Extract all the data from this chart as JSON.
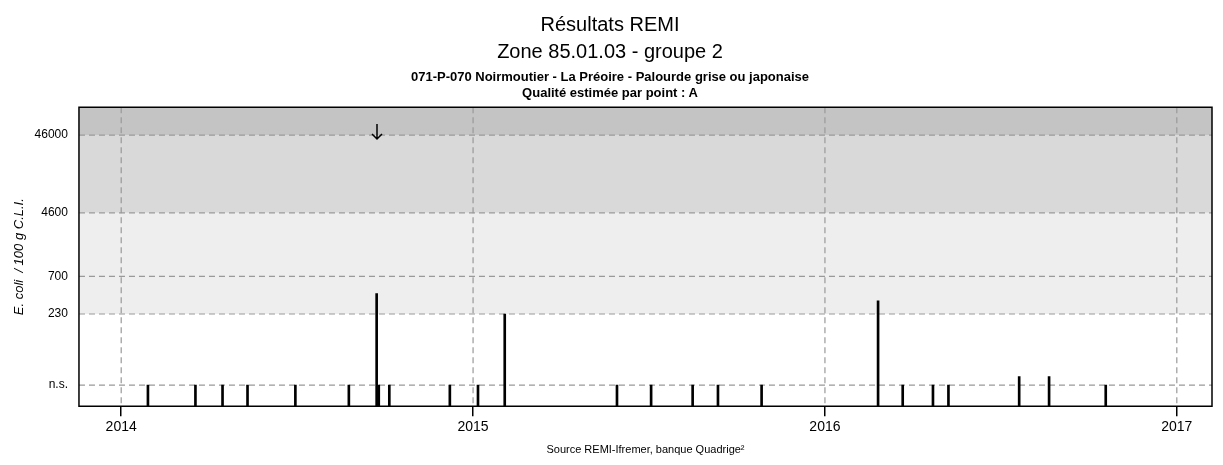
{
  "chart_data": {
    "type": "bar",
    "title": "Résultats REMI\nZone 85.01.03 - groupe 2",
    "subtitle": "071-P-070 Noirmoutier - La Préoire - Palourde grise ou japonaise\nQualité estimée par point : A",
    "ylabel": "E. coli  / 100 g C.L.I.",
    "annotations": [
      "Source REMI-Ifremer, banque Quadrige²"
    ],
    "x": [
      2014.076,
      2014.211,
      2014.288,
      2014.359,
      2014.495,
      2014.647,
      2014.726,
      2014.732,
      2014.762,
      2014.934,
      2015.014,
      2015.09,
      2015.409,
      2015.506,
      2015.624,
      2015.696,
      2015.82,
      2016.151,
      2016.221,
      2016.307,
      2016.351,
      2016.552,
      2016.637,
      2016.798
    ],
    "values": [
      28,
      28,
      28,
      28,
      28,
      28,
      420,
      28,
      28,
      28,
      28,
      230,
      28,
      28,
      28,
      28,
      28,
      340,
      28,
      28,
      28,
      36,
      36,
      28
    ],
    "color": "#000000",
    "log": true,
    "grid": true,
    "legend": false,
    "xlim": [
      2013.88,
      2017.1
    ],
    "xticks": [
      2014,
      2015,
      2016,
      2017
    ],
    "ylim": [
      15,
      105000
    ],
    "yticks": [
      {
        "value": 28,
        "label": "n.s."
      },
      230,
      700,
      4600,
      46000
    ],
    "bands": [
      {
        "axis": "y",
        "from": 230,
        "to": 4600,
        "color": "#eeeeee"
      },
      {
        "axis": "y",
        "from": 4600,
        "to": 46000,
        "color": "#d9d9d9"
      },
      {
        "axis": "y",
        "from": 46000,
        "to": 105000,
        "color": "#c4c4c4"
      }
    ]
  }
}
